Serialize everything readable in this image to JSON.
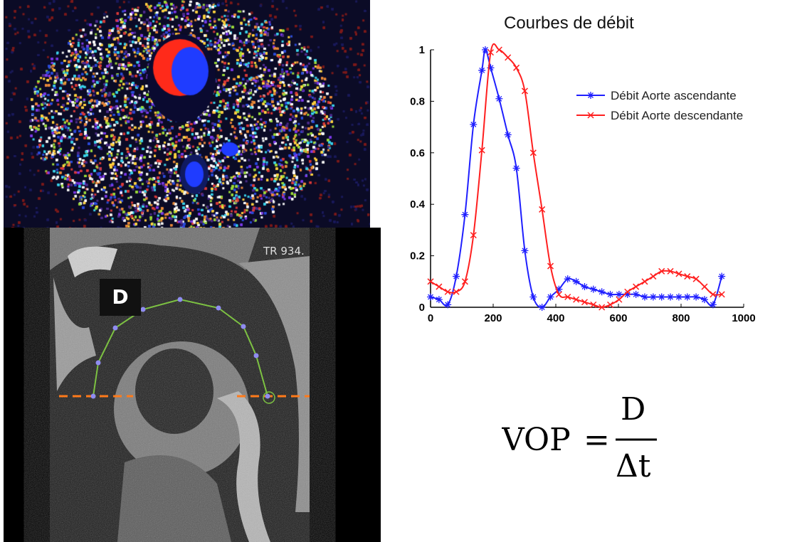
{
  "images": {
    "phase_map": {
      "name": "phase-contrast-map"
    },
    "mri": {
      "label_d": "D",
      "tr_text": "TR 934.",
      "path_color": "#7dc242",
      "marker_color": "#8f8cf0",
      "line_color": "#ff7a1a"
    }
  },
  "formula": {
    "lhs": "VOP",
    "eq": "=",
    "num": "D",
    "den": "Δt"
  },
  "chart_data": {
    "type": "line",
    "title": "Courbes de débit",
    "xlabel": "",
    "ylabel": "",
    "xlim": [
      0,
      1000
    ],
    "ylim": [
      0,
      1
    ],
    "xticks": [
      0,
      200,
      400,
      600,
      800,
      1000
    ],
    "yticks": [
      0,
      0.2,
      0.4,
      0.6,
      0.8,
      1
    ],
    "legend_position": "top-right",
    "grid": false,
    "series": [
      {
        "name": "Débit Aorte ascendante",
        "color": "#1f1fff",
        "marker": "*",
        "x": [
          0,
          27,
          55,
          82,
          110,
          137,
          164,
          175,
          192,
          219,
          247,
          274,
          301,
          328,
          356,
          383,
          410,
          438,
          465,
          492,
          520,
          547,
          574,
          602,
          629,
          656,
          684,
          711,
          738,
          766,
          793,
          820,
          848,
          875,
          902,
          930
        ],
        "y": [
          0.04,
          0.03,
          0.01,
          0.12,
          0.36,
          0.71,
          0.92,
          1.0,
          0.93,
          0.81,
          0.67,
          0.54,
          0.22,
          0.04,
          0.0,
          0.04,
          0.07,
          0.11,
          0.1,
          0.08,
          0.07,
          0.06,
          0.05,
          0.05,
          0.05,
          0.05,
          0.04,
          0.04,
          0.04,
          0.04,
          0.04,
          0.04,
          0.04,
          0.03,
          0.01,
          0.12
        ]
      },
      {
        "name": "Débit Aorte descendante",
        "color": "#ff1f1f",
        "marker": "x",
        "x": [
          0,
          27,
          55,
          82,
          110,
          137,
          164,
          192,
          219,
          247,
          274,
          301,
          328,
          356,
          383,
          410,
          438,
          465,
          492,
          520,
          547,
          574,
          602,
          629,
          656,
          684,
          711,
          738,
          766,
          793,
          820,
          848,
          875,
          902,
          930
        ],
        "y": [
          0.1,
          0.08,
          0.06,
          0.06,
          0.1,
          0.28,
          0.61,
          0.99,
          1.0,
          0.97,
          0.93,
          0.84,
          0.6,
          0.38,
          0.16,
          0.05,
          0.04,
          0.03,
          0.02,
          0.01,
          0.0,
          0.01,
          0.03,
          0.06,
          0.08,
          0.1,
          0.12,
          0.14,
          0.14,
          0.13,
          0.12,
          0.11,
          0.08,
          0.05,
          0.05
        ]
      }
    ]
  }
}
